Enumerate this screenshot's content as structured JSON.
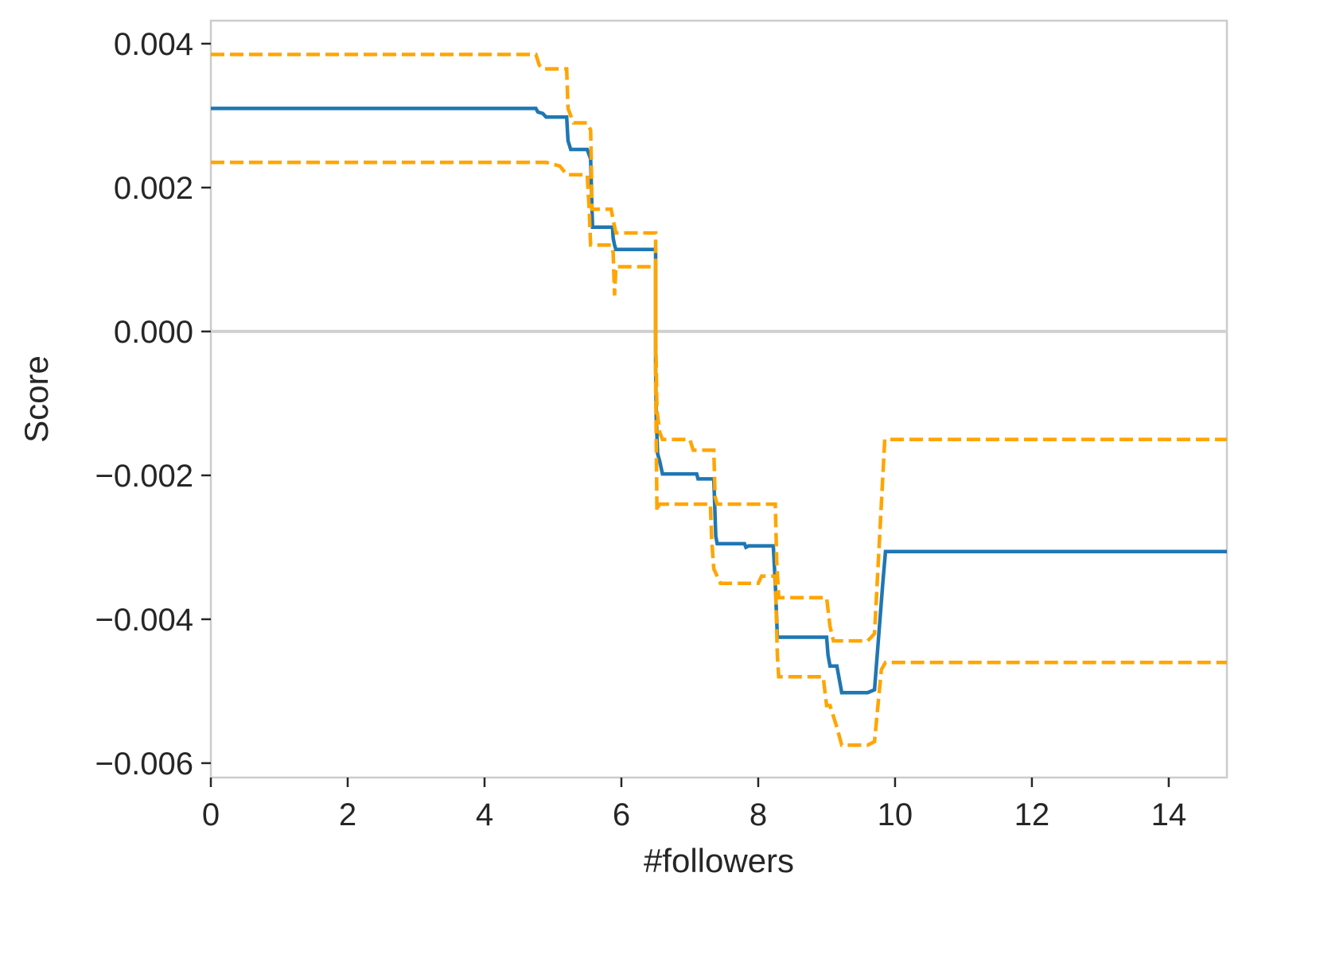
{
  "chart_data": {
    "type": "line",
    "title": "",
    "xlabel": "#followers",
    "ylabel": "Score",
    "xlim": [
      0,
      14.85
    ],
    "ylim": [
      -0.0062,
      0.00432
    ],
    "x_ticks": [
      0,
      2,
      4,
      6,
      8,
      10,
      12,
      14
    ],
    "x_tick_labels": [
      "0",
      "2",
      "4",
      "6",
      "8",
      "10",
      "12",
      "14"
    ],
    "y_ticks": [
      0.004,
      0.002,
      0.0,
      -0.002,
      -0.004,
      -0.006
    ],
    "y_tick_labels": [
      "0.004",
      "0.002",
      "0.000",
      "−0.002",
      "−0.004",
      "−0.006"
    ],
    "grid": false,
    "reference_line": {
      "y": 0.0,
      "color": "#d0d0d0"
    },
    "colors": {
      "mean": "#1f77b4",
      "bounds": "#ffa500",
      "spine": "#cccccc",
      "text": "#262626"
    },
    "series": [
      {
        "style": "solid",
        "color": "#1f77b4",
        "x": [
          0,
          4.75,
          4.78,
          4.85,
          4.9,
          5.2,
          5.22,
          5.26,
          5.5,
          5.55,
          5.56,
          5.57,
          5.58,
          5.6,
          5.87,
          5.88,
          5.9,
          5.92,
          5.95,
          6.5,
          6.5,
          6.51,
          6.53,
          6.56,
          6.6,
          7.1,
          7.12,
          7.35,
          7.36,
          7.38,
          7.4,
          7.8,
          7.82,
          7.86,
          7.9,
          8.22,
          8.25,
          8.28,
          9.0,
          9.02,
          9.05,
          9.15,
          9.22,
          9.6,
          9.7,
          9.82,
          9.86,
          14.85
        ],
        "y": [
          0.0031,
          0.0031,
          0.00305,
          0.00303,
          0.00298,
          0.00298,
          0.00265,
          0.00253,
          0.00253,
          0.0024,
          0.0021,
          0.0017,
          0.00145,
          0.00145,
          0.00145,
          0.0013,
          0.0012,
          0.00114,
          0.00114,
          0.00114,
          -0.0005,
          -0.0012,
          -0.0017,
          -0.0018,
          -0.00198,
          -0.00198,
          -0.00205,
          -0.00205,
          -0.0023,
          -0.00285,
          -0.00295,
          -0.00295,
          -0.003,
          -0.00298,
          -0.00298,
          -0.00298,
          -0.0035,
          -0.00425,
          -0.00425,
          -0.0045,
          -0.00465,
          -0.00465,
          -0.00502,
          -0.00502,
          -0.00498,
          -0.0035,
          -0.00306,
          -0.00306
        ]
      },
      {
        "style": "dashed",
        "color": "#ffa500",
        "x": [
          0,
          4.75,
          4.8,
          4.85,
          5.0,
          5.15,
          5.2,
          5.22,
          5.3,
          5.5,
          5.55,
          5.56,
          5.57,
          5.6,
          5.85,
          5.88,
          5.92,
          5.95,
          6.5,
          6.5,
          6.52,
          6.56,
          6.6,
          7.0,
          7.05,
          7.35,
          7.37,
          7.4,
          8.25,
          8.27,
          8.3,
          9.0,
          9.05,
          9.1,
          9.6,
          9.7,
          9.85,
          14.85
        ],
        "y": [
          0.00385,
          0.00385,
          0.0037,
          0.00365,
          0.00365,
          0.00365,
          0.00365,
          0.0031,
          0.0029,
          0.0029,
          0.0028,
          0.0024,
          0.0017,
          0.0017,
          0.0017,
          0.00155,
          0.00137,
          0.00137,
          0.00137,
          0.0,
          -0.0011,
          -0.0014,
          -0.0015,
          -0.0015,
          -0.00165,
          -0.00165,
          -0.0023,
          -0.0024,
          -0.0024,
          -0.0032,
          -0.0037,
          -0.0037,
          -0.0041,
          -0.0043,
          -0.0043,
          -0.0042,
          -0.0015,
          -0.0015
        ]
      },
      {
        "style": "dashed",
        "color": "#ffa500",
        "x": [
          0,
          4.9,
          5.1,
          5.2,
          5.5,
          5.53,
          5.55,
          5.6,
          5.85,
          5.88,
          5.9,
          5.92,
          5.95,
          6.5,
          6.5,
          6.52,
          6.55,
          6.6,
          7.3,
          7.32,
          7.35,
          7.45,
          8.0,
          8.05,
          8.25,
          8.28,
          8.3,
          8.95,
          9.0,
          9.05,
          9.15,
          9.22,
          9.6,
          9.7,
          9.8,
          9.86,
          14.85
        ],
        "y": [
          0.00235,
          0.00235,
          0.0023,
          0.00218,
          0.00218,
          0.0017,
          0.0012,
          0.0012,
          0.0012,
          0.0011,
          0.0005,
          0.0009,
          0.0009,
          0.0009,
          -0.0007,
          -0.0025,
          -0.0024,
          -0.0024,
          -0.0024,
          -0.0029,
          -0.0033,
          -0.0035,
          -0.0035,
          -0.0034,
          -0.0034,
          -0.0045,
          -0.0048,
          -0.0048,
          -0.0052,
          -0.0052,
          -0.0055,
          -0.00575,
          -0.00575,
          -0.0057,
          -0.0047,
          -0.0046,
          -0.0046
        ]
      }
    ]
  }
}
